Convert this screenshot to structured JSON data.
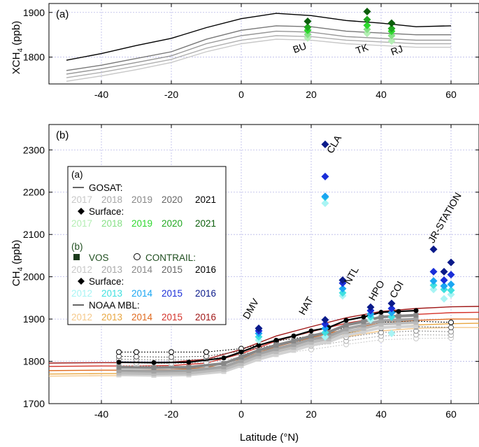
{
  "chart_data": [
    {
      "id": "a",
      "type": "line",
      "panel_label": "(a)",
      "ylabel": "XCH4 (ppb)",
      "xlim": [
        -55,
        68
      ],
      "ylim": [
        1740,
        1920
      ],
      "x_ticks": [
        -40,
        -20,
        0,
        20,
        40,
        60
      ],
      "y_ticks": [
        1800,
        1900
      ],
      "x_tick_labels": [
        "-40",
        "-20",
        "0",
        "20",
        "40",
        "60"
      ],
      "y_tick_labels": [
        "1800",
        "1900"
      ],
      "x": [
        -50,
        -40,
        -30,
        -20,
        -10,
        0,
        10,
        20,
        30,
        40,
        50,
        60
      ],
      "series": [
        {
          "name": "2017",
          "color": "#c8c8c8",
          "values": [
            1746,
            1758,
            1772,
            1788,
            1812,
            1830,
            1840,
            1838,
            1830,
            1826,
            1822,
            1822
          ]
        },
        {
          "name": "2018",
          "color": "#b0b0b0",
          "values": [
            1754,
            1766,
            1780,
            1795,
            1820,
            1838,
            1848,
            1846,
            1838,
            1834,
            1830,
            1830
          ]
        },
        {
          "name": "2019",
          "color": "#969696",
          "values": [
            1762,
            1774,
            1788,
            1803,
            1830,
            1848,
            1858,
            1856,
            1846,
            1842,
            1838,
            1838
          ]
        },
        {
          "name": "2020",
          "color": "#777777",
          "values": [
            1770,
            1782,
            1797,
            1812,
            1840,
            1860,
            1870,
            1868,
            1858,
            1854,
            1850,
            1850
          ]
        },
        {
          "name": "2021",
          "color": "#000000",
          "values": [
            1793,
            1808,
            1826,
            1842,
            1866,
            1886,
            1898,
            1893,
            1882,
            1876,
            1868,
            1870
          ]
        }
      ],
      "surface": [
        {
          "site": "BU",
          "lat": 19,
          "values": [
            1843,
            1851,
            1860,
            1867,
            1880
          ],
          "colors": [
            "#b4eeb4",
            "#86e086",
            "#2ed82e",
            "#21a821",
            "#0b5e0b"
          ]
        },
        {
          "site": "TK",
          "lat": 36,
          "values": [
            1853,
            1862,
            1871,
            1884,
            1902
          ],
          "colors": [
            "#b4eeb4",
            "#86e086",
            "#2ed82e",
            "#21a821",
            "#0b5e0b"
          ]
        },
        {
          "site": "RJ",
          "lat": 43,
          "values": [
            1836,
            1848,
            1858,
            1864,
            1876
          ],
          "colors": [
            "#b4eeb4",
            "#86e086",
            "#2ed82e",
            "#21a821",
            "#0b5e0b"
          ]
        }
      ],
      "site_labels": [
        "BU",
        "TK",
        "RJ"
      ]
    },
    {
      "id": "b",
      "type": "line",
      "panel_label": "(b)",
      "ylabel": "CH4 (ppb)",
      "xlabel": "Latitude (°N)",
      "xlim": [
        -55,
        68
      ],
      "ylim": [
        1700,
        2360
      ],
      "x_ticks": [
        -40,
        -20,
        0,
        20,
        40,
        60
      ],
      "y_ticks": [
        1700,
        1800,
        1900,
        2000,
        2100,
        2200,
        2300
      ],
      "x_tick_labels": [
        "-40",
        "-20",
        "0",
        "20",
        "40",
        "60"
      ],
      "y_tick_labels": [
        "1700",
        "1800",
        "1900",
        "2000",
        "2100",
        "2200",
        "2300"
      ],
      "vos": {
        "name": "VOS 2016",
        "color": "#000000",
        "x": [
          -35,
          -25,
          -15,
          -5,
          0,
          5,
          10,
          15,
          20,
          25,
          30,
          35,
          40,
          45,
          50
        ],
        "values": [
          1798,
          1797,
          1798,
          1808,
          1822,
          1838,
          1850,
          1860,
          1872,
          1880,
          1897,
          1905,
          1916,
          1918,
          1920
        ]
      },
      "vos_gray": [
        {
          "name": "2012",
          "color": "#d2d2d2",
          "values": [
            1768,
            1767,
            1768,
            1776,
            1790,
            1805,
            1816,
            1826,
            1838,
            1846,
            1862,
            1870,
            1880,
            1882,
            1883
          ]
        },
        {
          "name": "2013",
          "color": "#bbbbbb",
          "values": [
            1772,
            1771,
            1772,
            1781,
            1795,
            1812,
            1823,
            1833,
            1845,
            1853,
            1870,
            1878,
            1888,
            1890,
            1892
          ]
        },
        {
          "name": "2014",
          "color": "#a3a3a3",
          "values": [
            1778,
            1777,
            1778,
            1787,
            1802,
            1818,
            1830,
            1840,
            1852,
            1860,
            1877,
            1886,
            1896,
            1898,
            1900
          ]
        },
        {
          "name": "2015",
          "color": "#888888",
          "values": [
            1786,
            1785,
            1786,
            1795,
            1810,
            1826,
            1838,
            1848,
            1860,
            1869,
            1886,
            1894,
            1905,
            1907,
            1909
          ]
        }
      ],
      "contrail": {
        "x": [
          -35,
          -30,
          -20,
          -10,
          0,
          10,
          20,
          30,
          40,
          50,
          60
        ],
        "series": [
          {
            "name": "2016",
            "color": "#000000",
            "values": [
              1822,
              1822,
              1822,
              1822,
              1830,
              1848,
              1860,
              1880,
              1892,
              1895,
              1892
            ]
          },
          {
            "name": "2015",
            "color": "#555555",
            "values": [
              1812,
              1811,
              1810,
              1812,
              1824,
              1840,
              1852,
              1866,
              1878,
              1882,
              1880
            ]
          },
          {
            "name": "2014",
            "color": "#888888",
            "values": [
              1805,
              1804,
              1803,
              1805,
              1817,
              1832,
              1844,
              1857,
              1868,
              1872,
              1870
            ]
          },
          {
            "name": "2013",
            "color": "#aaaaaa",
            "values": [
              1797,
              1796,
              1795,
              1797,
              1810,
              1825,
              1836,
              1848,
              1860,
              1863,
              1862
            ]
          },
          {
            "name": "2012",
            "color": "#c8c8c8",
            "values": [
              1790,
              1789,
              1788,
              1790,
              1802,
              1817,
              1828,
              1840,
              1851,
              1854,
              1855
            ]
          }
        ]
      },
      "noaa_mbl": {
        "x": [
          -55,
          -40,
          -30,
          -20,
          -10,
          0,
          10,
          20,
          30,
          40,
          50,
          60,
          68
        ],
        "series": [
          {
            "name": "2012",
            "color": "#f5c88a",
            "values": [
              1765,
              1766,
              1766,
              1767,
              1770,
              1790,
              1818,
              1838,
              1858,
              1872,
              1878,
              1880,
              1880
            ]
          },
          {
            "name": "2013",
            "color": "#e8a640",
            "values": [
              1770,
              1771,
              1771,
              1772,
              1776,
              1797,
              1826,
              1846,
              1866,
              1880,
              1886,
              1889,
              1890
            ]
          },
          {
            "name": "2014",
            "color": "#e06a1e",
            "values": [
              1778,
              1779,
              1779,
              1780,
              1785,
              1806,
              1835,
              1856,
              1876,
              1890,
              1897,
              1900,
              1900
            ]
          },
          {
            "name": "2015",
            "color": "#d4322a",
            "values": [
              1788,
              1789,
              1789,
              1790,
              1796,
              1818,
              1848,
              1870,
              1890,
              1904,
              1911,
              1915,
              1916
            ]
          },
          {
            "name": "2016",
            "color": "#a01818",
            "values": [
              1796,
              1797,
              1797,
              1798,
              1805,
              1828,
              1860,
              1882,
              1903,
              1918,
              1925,
              1929,
              1930
            ]
          }
        ]
      },
      "surface": [
        {
          "site": "DMV",
          "lat": 5,
          "values": [
            1850,
            1858,
            1866,
            1872,
            1878
          ]
        },
        {
          "site": "HAT",
          "lat": 24,
          "values": [
            1858,
            1868,
            1878,
            1888,
            1898
          ]
        },
        {
          "site": "CLA",
          "lat": 24,
          "values": [
            2174,
            2188,
            2190,
            2237,
            2313
          ]
        },
        {
          "site": "NTL",
          "lat": 29,
          "values": [
            1955,
            1962,
            1972,
            1985,
            1992
          ]
        },
        {
          "site": "HPO",
          "lat": 37,
          "values": [
            1898,
            1905,
            1912,
            1920,
            1928
          ]
        },
        {
          "site": "COI",
          "lat": 43,
          "values": [
            1866,
            1905,
            1915,
            1925,
            1937
          ]
        },
        {
          "site": "JR-STATION",
          "lat": 55,
          "values": [
            1970,
            1980,
            1990,
            2012,
            2065
          ]
        },
        {
          "site": "JR-STATION",
          "lat": 58,
          "values": [
            1948,
            1970,
            1978,
            1992,
            2012
          ]
        },
        {
          "site": "JR-STATION",
          "lat": 60,
          "values": [
            1958,
            1968,
            1982,
            2005,
            2034
          ]
        }
      ],
      "surface_colors": [
        "#a8f4f4",
        "#40e0e0",
        "#1aa6f2",
        "#1a2ed8",
        "#0a1a8a"
      ],
      "site_labels": [
        "DMV",
        "HAT",
        "CLA",
        "NTL",
        "HPO",
        "COI",
        "JR-STATION"
      ],
      "legend": {
        "a_header": "(a)",
        "gosat_label": "GOSAT:",
        "gosat_years": [
          "2017",
          "2018",
          "2019",
          "2020",
          "2021"
        ],
        "gosat_colors": [
          "#c8c8c8",
          "#a8a8a8",
          "#888888",
          "#666666",
          "#000000"
        ],
        "surface_a_label": "Surface:",
        "surface_a_years": [
          "2017",
          "2018",
          "2019",
          "2020",
          "2021"
        ],
        "surface_a_colors": [
          "#b4eeb4",
          "#86e086",
          "#2ed82e",
          "#21a821",
          "#0b5e0b"
        ],
        "b_header": "(b)",
        "vos_label": "VOS",
        "contrail_label": "CONTRAIL:",
        "vos_years": [
          "2012",
          "2013",
          "2014",
          "2015",
          "2016"
        ],
        "vos_colors": [
          "#c8c8c8",
          "#a8a8a8",
          "#888888",
          "#666666",
          "#000000"
        ],
        "surface_b_label": "Surface:",
        "surface_b_years": [
          "2012",
          "2013",
          "2014",
          "2015",
          "2016"
        ],
        "surface_b_colors": [
          "#a8f4f4",
          "#40e0e0",
          "#1aa6f2",
          "#1a2ed8",
          "#0a1a8a"
        ],
        "noaa_label": "NOAA MBL:",
        "noaa_years": [
          "2012",
          "2013",
          "2014",
          "2015",
          "2016"
        ],
        "noaa_colors": [
          "#f5c88a",
          "#e8a640",
          "#e06a1e",
          "#d4322a",
          "#a01818"
        ]
      }
    }
  ]
}
